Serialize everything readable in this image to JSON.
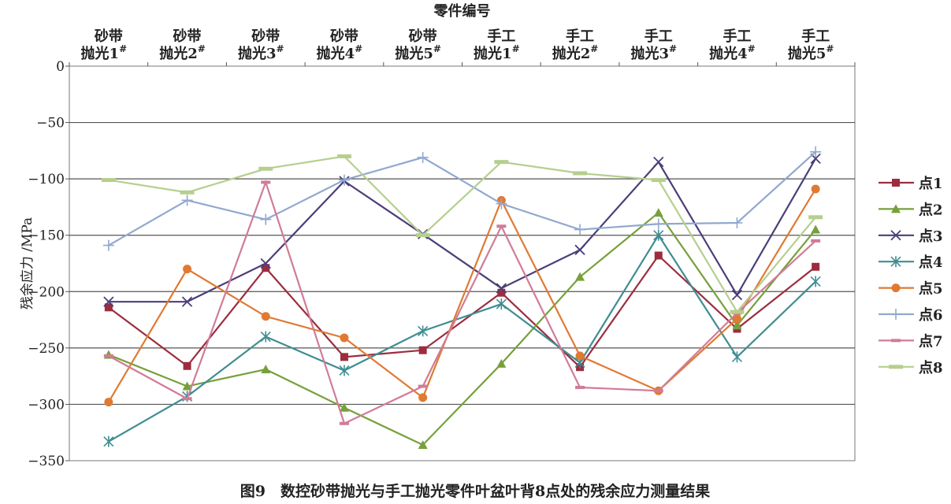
{
  "chart_data": {
    "type": "line",
    "xlabel": "零件编号",
    "ylabel": "残余应力 /MPa",
    "caption": "图9　数控砂带抛光与手工抛光零件叶盆叶背8点处的残余应力测量结果",
    "xaxis_position": "top",
    "ylim": [
      -350,
      0
    ],
    "yticks": [
      0,
      -50,
      -100,
      -150,
      -200,
      -250,
      -300,
      -350
    ],
    "ytick_labels": [
      "0",
      "−50",
      "−100",
      "−150",
      "−200",
      "−250",
      "−300",
      "−350"
    ],
    "grid": "horizontal",
    "legend_position": "right",
    "categories": [
      {
        "line1": "砂带",
        "line2": "抛光1",
        "sup": "#"
      },
      {
        "line1": "砂带",
        "line2": "抛光2",
        "sup": "#"
      },
      {
        "line1": "砂带",
        "line2": "抛光3",
        "sup": "#"
      },
      {
        "line1": "砂带",
        "line2": "抛光4",
        "sup": "#"
      },
      {
        "line1": "砂带",
        "line2": "抛光5",
        "sup": "#"
      },
      {
        "line1": "手工",
        "line2": "抛光1",
        "sup": "#"
      },
      {
        "line1": "手工",
        "line2": "抛光2",
        "sup": "#"
      },
      {
        "line1": "手工",
        "line2": "抛光3",
        "sup": "#"
      },
      {
        "line1": "手工",
        "line2": "抛光4",
        "sup": "#"
      },
      {
        "line1": "手工",
        "line2": "抛光5",
        "sup": "#"
      }
    ],
    "series": [
      {
        "name": "点1",
        "color": "#9b2d3f",
        "marker": "square",
        "values": [
          -214,
          -266,
          -179,
          -258,
          -252,
          -201,
          -267,
          -168,
          -233,
          -178
        ]
      },
      {
        "name": "点2",
        "color": "#77a03a",
        "marker": "triangle",
        "values": [
          -256,
          -284,
          -269,
          -303,
          -336,
          -264,
          -187,
          -130,
          -230,
          -145
        ]
      },
      {
        "name": "点3",
        "color": "#4b3e78",
        "marker": "x",
        "values": [
          -209,
          -209,
          -175,
          -102,
          -149,
          -197,
          -163,
          -85,
          -203,
          -82
        ]
      },
      {
        "name": "点4",
        "color": "#3f8d92",
        "marker": "asterisk",
        "values": [
          -333,
          -293,
          -240,
          -270,
          -235,
          -211,
          -263,
          -150,
          -258,
          -191
        ]
      },
      {
        "name": "点5",
        "color": "#e07a33",
        "marker": "circle",
        "values": [
          -298,
          -180,
          -222,
          -241,
          -294,
          -119,
          -257,
          -288,
          -224,
          -109
        ]
      },
      {
        "name": "点6",
        "color": "#91a8d0",
        "marker": "plus",
        "values": [
          -159,
          -119,
          -136,
          -101,
          -81,
          -122,
          -145,
          -140,
          -139,
          -76
        ]
      },
      {
        "name": "点7",
        "color": "#d07c97",
        "marker": "dash",
        "values": [
          -257,
          -295,
          -103,
          -317,
          -284,
          -142,
          -285,
          -288,
          -219,
          -155
        ]
      },
      {
        "name": "点8",
        "color": "#b5cf8e",
        "marker": "bar",
        "values": [
          -101,
          -112,
          -91,
          -80,
          -150,
          -85,
          -95,
          -101,
          -218,
          -134
        ]
      }
    ]
  }
}
